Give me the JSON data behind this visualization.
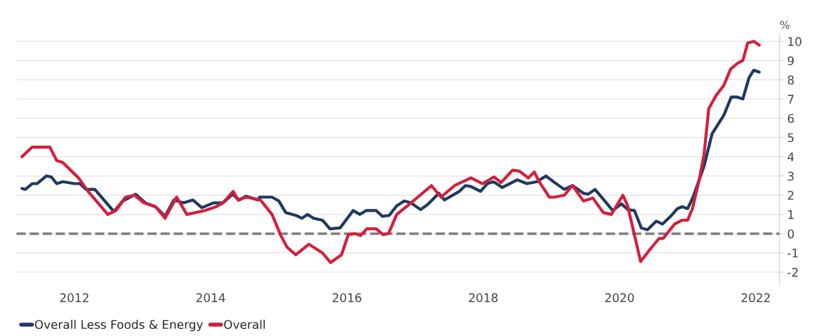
{
  "chart_data": {
    "type": "line",
    "ylabel": "%",
    "xlim": [
      2011.15,
      2022.35
    ],
    "xticks": [
      2012,
      2014,
      2016,
      2018,
      2020,
      2022
    ],
    "ylim": [
      -2.7,
      10.4
    ],
    "yticks": [
      -2,
      -1,
      0,
      1,
      2,
      3,
      4,
      5,
      6,
      7,
      8,
      9,
      10
    ],
    "grid": "y",
    "legend": "bottom left",
    "line_style": "solid",
    "marker": "none",
    "ref_lines": [
      {
        "axis": "y",
        "value": 0,
        "color": "#7f7f7f",
        "line_style": "dashed"
      }
    ],
    "series": [
      {
        "name": "Overall Less Foods & Energy",
        "color": "#1f3a60",
        "x": [
          2011.23,
          2011.28,
          2011.38,
          2011.45,
          2011.59,
          2011.66,
          2011.74,
          2011.83,
          2012.0,
          2012.08,
          2012.17,
          2012.3,
          2012.47,
          2012.58,
          2012.71,
          2012.9,
          2013.04,
          2013.19,
          2013.33,
          2013.46,
          2013.6,
          2013.74,
          2013.87,
          2014.04,
          2014.18,
          2014.32,
          2014.42,
          2014.52,
          2014.69,
          2014.72,
          2014.9,
          2015.0,
          2015.1,
          2015.25,
          2015.34,
          2015.42,
          2015.51,
          2015.64,
          2015.75,
          2015.9,
          2016.09,
          2016.19,
          2016.28,
          2016.43,
          2016.52,
          2016.62,
          2016.73,
          2016.84,
          2016.94,
          2017.08,
          2017.18,
          2017.35,
          2017.43,
          2017.65,
          2017.74,
          2017.82,
          2017.96,
          2018.06,
          2018.15,
          2018.28,
          2018.5,
          2018.64,
          2018.79,
          2018.92,
          2019.05,
          2019.19,
          2019.31,
          2019.47,
          2019.54,
          2019.64,
          2019.76,
          2019.9,
          2020.03,
          2020.12,
          2020.22,
          2020.32,
          2020.41,
          2020.54,
          2020.63,
          2020.75,
          2020.85,
          2020.92,
          2021.0,
          2021.08,
          2021.24,
          2021.36,
          2021.53,
          2021.64,
          2021.73,
          2021.81,
          2021.9,
          2021.97,
          2022.05
        ],
        "values": [
          2.35,
          2.3,
          2.6,
          2.6,
          3.0,
          2.95,
          2.6,
          2.7,
          2.6,
          2.6,
          2.3,
          2.3,
          1.6,
          1.15,
          1.7,
          2.05,
          1.6,
          1.4,
          0.9,
          1.75,
          1.6,
          1.75,
          1.35,
          1.6,
          1.6,
          2.05,
          1.75,
          1.95,
          1.75,
          1.9,
          1.9,
          1.7,
          1.1,
          0.95,
          0.8,
          1.0,
          0.8,
          0.7,
          0.25,
          0.3,
          1.2,
          1.0,
          1.2,
          1.2,
          0.9,
          0.95,
          1.45,
          1.7,
          1.6,
          1.25,
          1.5,
          2.1,
          1.75,
          2.2,
          2.5,
          2.45,
          2.2,
          2.6,
          2.7,
          2.4,
          2.8,
          2.6,
          2.7,
          3.0,
          2.65,
          2.3,
          2.5,
          2.1,
          2.05,
          2.3,
          1.8,
          1.2,
          1.55,
          1.25,
          1.2,
          0.3,
          0.2,
          0.65,
          0.5,
          0.9,
          1.3,
          1.4,
          1.3,
          1.9,
          3.5,
          5.2,
          6.15,
          7.1,
          7.1,
          7.0,
          8.1,
          8.5,
          8.4
        ]
      },
      {
        "name": "Overall",
        "color": "#d41f3c",
        "x": [
          2011.23,
          2011.38,
          2011.64,
          2011.74,
          2011.83,
          2012.06,
          2012.2,
          2012.49,
          2012.61,
          2012.75,
          2012.88,
          2013.02,
          2013.19,
          2013.33,
          2013.5,
          2013.65,
          2013.91,
          2014.08,
          2014.18,
          2014.33,
          2014.4,
          2014.52,
          2014.73,
          2014.9,
          2015.03,
          2015.12,
          2015.25,
          2015.44,
          2015.64,
          2015.76,
          2015.92,
          2016.02,
          2016.12,
          2016.2,
          2016.29,
          2016.43,
          2016.53,
          2016.61,
          2016.73,
          2016.87,
          2017.04,
          2017.24,
          2017.38,
          2017.58,
          2017.82,
          2017.99,
          2018.16,
          2018.26,
          2018.43,
          2018.53,
          2018.66,
          2018.75,
          2018.83,
          2018.97,
          2019.05,
          2019.19,
          2019.31,
          2019.47,
          2019.61,
          2019.76,
          2019.88,
          2020.05,
          2020.12,
          2020.31,
          2020.44,
          2020.58,
          2020.64,
          2020.81,
          2020.92,
          2021.0,
          2021.07,
          2021.17,
          2021.24,
          2021.31,
          2021.42,
          2021.53,
          2021.63,
          2021.73,
          2021.81,
          2021.88,
          2021.97,
          2022.05
        ],
        "values": [
          4.0,
          4.5,
          4.5,
          3.8,
          3.7,
          2.9,
          2.2,
          1.0,
          1.2,
          1.9,
          2.0,
          1.6,
          1.4,
          0.8,
          1.9,
          1.0,
          1.2,
          1.4,
          1.6,
          2.2,
          1.75,
          1.9,
          1.75,
          1.0,
          -0.1,
          -0.7,
          -1.1,
          -0.55,
          -1.0,
          -1.5,
          -1.1,
          -0.05,
          0,
          -0.1,
          0.25,
          0.25,
          -0.05,
          0,
          1.0,
          1.4,
          1.9,
          2.5,
          1.9,
          2.5,
          2.9,
          2.6,
          2.95,
          2.65,
          3.3,
          3.25,
          2.9,
          3.2,
          2.65,
          1.9,
          1.9,
          2.0,
          2.5,
          1.7,
          1.85,
          1.1,
          1.0,
          2.0,
          1.45,
          -1.45,
          -0.85,
          -0.25,
          -0.25,
          0.5,
          0.7,
          0.7,
          1.3,
          2.8,
          4.1,
          6.5,
          7.2,
          7.7,
          8.55,
          8.85,
          9.0,
          9.9,
          10.0,
          9.8
        ]
      }
    ]
  }
}
